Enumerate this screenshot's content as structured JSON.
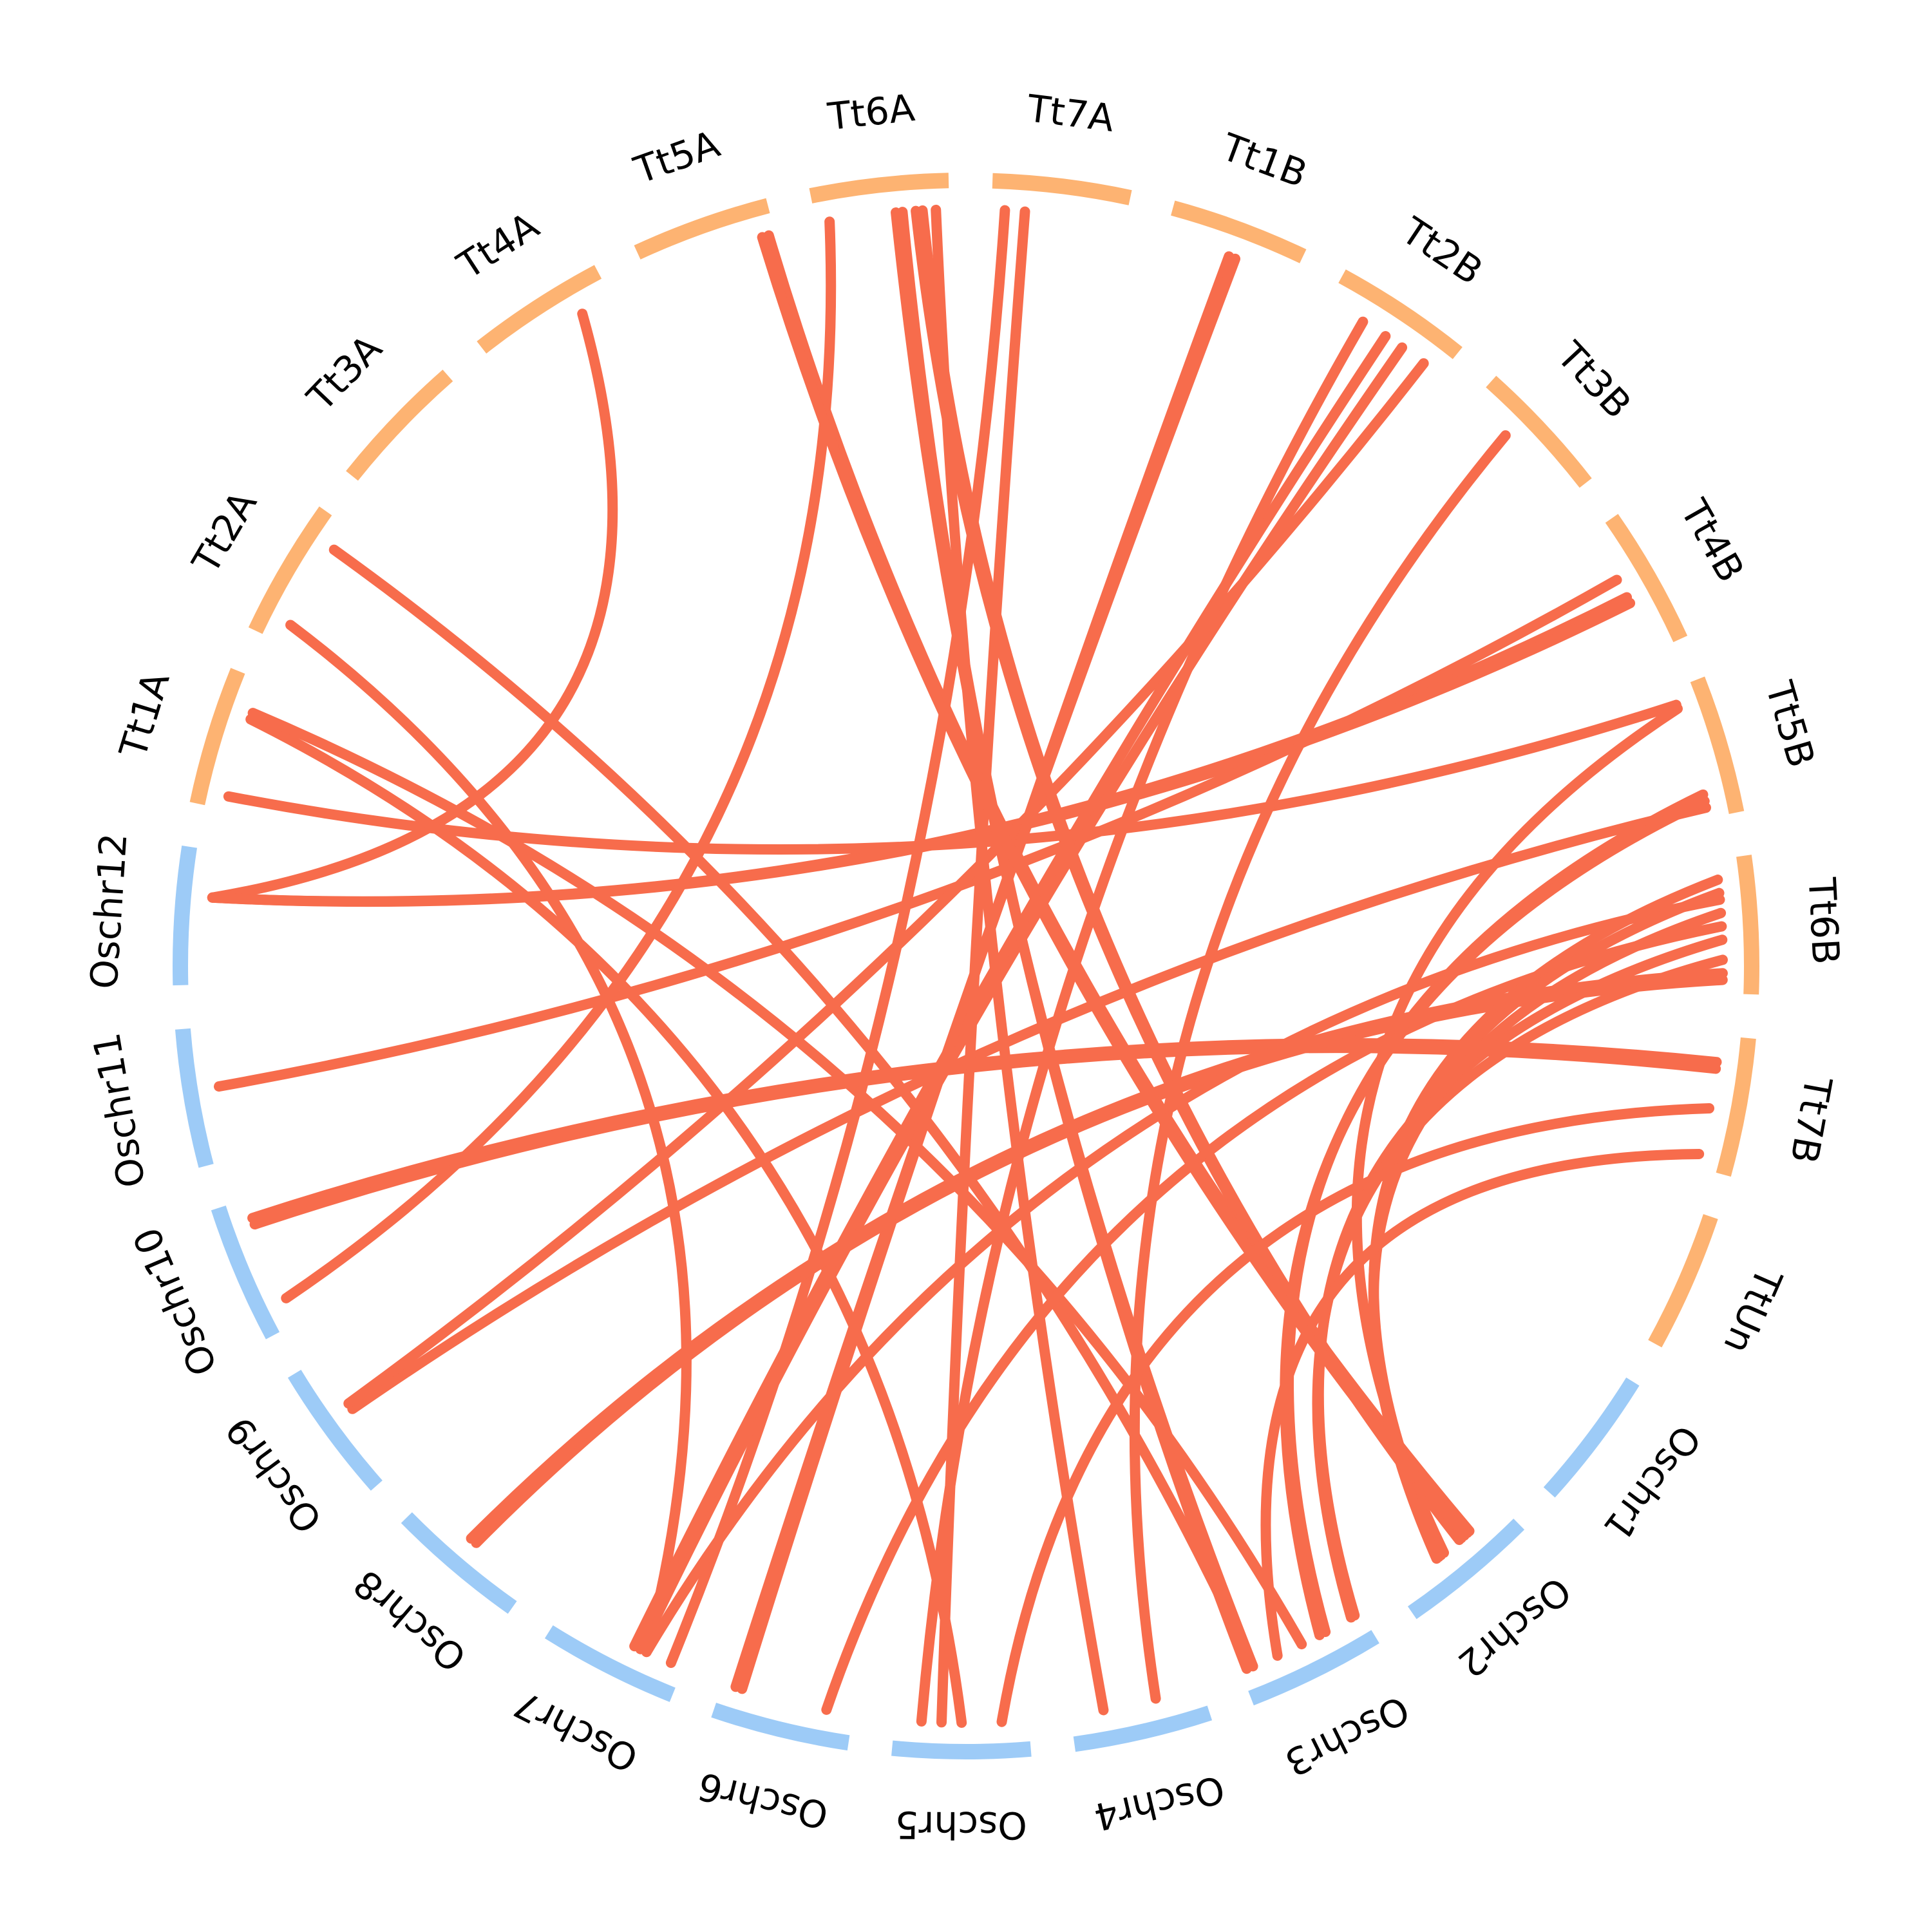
{
  "colors": {
    "wheat_segment": "#FDB372",
    "rice_segment": "#9DCBF7",
    "link": "#F76C4C",
    "label": "#000000",
    "background": "#FFFFFF"
  },
  "chromosomes": [
    {
      "id": "Tt1A",
      "label": "Tt1A",
      "group": "wheat"
    },
    {
      "id": "Tt2A",
      "label": "Tt2A",
      "group": "wheat"
    },
    {
      "id": "Tt3A",
      "label": "Tt3A",
      "group": "wheat"
    },
    {
      "id": "Tt4A",
      "label": "Tt4A",
      "group": "wheat"
    },
    {
      "id": "Tt5A",
      "label": "Tt5A",
      "group": "wheat"
    },
    {
      "id": "Tt6A",
      "label": "Tt6A",
      "group": "wheat"
    },
    {
      "id": "Tt7A",
      "label": "Tt7A",
      "group": "wheat"
    },
    {
      "id": "Tt1B",
      "label": "Tt1B",
      "group": "wheat"
    },
    {
      "id": "Tt2B",
      "label": "Tt2B",
      "group": "wheat"
    },
    {
      "id": "Tt3B",
      "label": "Tt3B",
      "group": "wheat"
    },
    {
      "id": "Tt4B",
      "label": "Tt4B",
      "group": "wheat"
    },
    {
      "id": "Tt5B",
      "label": "Tt5B",
      "group": "wheat"
    },
    {
      "id": "Tt6B",
      "label": "Tt6B",
      "group": "wheat"
    },
    {
      "id": "Tt7B",
      "label": "Tt7B",
      "group": "wheat"
    },
    {
      "id": "TtUn",
      "label": "TtUn",
      "group": "wheat"
    },
    {
      "id": "Oschr1",
      "label": "Oschr1",
      "group": "rice"
    },
    {
      "id": "Oschr2",
      "label": "Oschr2",
      "group": "rice"
    },
    {
      "id": "Oschr3",
      "label": "Oschr3",
      "group": "rice"
    },
    {
      "id": "Oschr4",
      "label": "Oschr4",
      "group": "rice"
    },
    {
      "id": "Oschr5",
      "label": "Oschr5",
      "group": "rice"
    },
    {
      "id": "Oschr6",
      "label": "Oschr6",
      "group": "rice"
    },
    {
      "id": "Oschr7",
      "label": "Oschr7",
      "group": "rice"
    },
    {
      "id": "Oschr8",
      "label": "Oschr8",
      "group": "rice"
    },
    {
      "id": "Oschr9",
      "label": "Oschr9",
      "group": "rice"
    },
    {
      "id": "Oschr10",
      "label": "Oschr10",
      "group": "rice"
    },
    {
      "id": "Oschr11",
      "label": "Oschr11",
      "group": "rice"
    },
    {
      "id": "Oschr12",
      "label": "Oschr12",
      "group": "rice"
    }
  ],
  "links": [
    {
      "from": "Oschr12",
      "from_pos": 0.65,
      "to": "Tt4A",
      "to_pos": 0.75
    },
    {
      "from": "Oschr12",
      "from_pos": 0.65,
      "to": "Tt4B",
      "to_pos": 0.55
    },
    {
      "from": "Oschr12",
      "from_pos": 0.65,
      "to": "Tt4B",
      "to_pos": 0.6
    },
    {
      "from": "Tt1A",
      "from_pos": 0.1,
      "to": "Tt5B",
      "to_pos": 0.12
    },
    {
      "from": "Tt1A",
      "from_pos": 0.7,
      "to": "Oschr5",
      "to_pos": 0.5
    },
    {
      "from": "Tt1A",
      "from_pos": 0.75,
      "to": "Oschr3",
      "to_pos": 0.5
    },
    {
      "from": "Tt2A",
      "from_pos": 0.15,
      "to": "Oschr7",
      "to_pos": 0.3
    },
    {
      "from": "Tt2A",
      "from_pos": 0.8,
      "to": "Oschr3",
      "to_pos": 0.9
    },
    {
      "from": "Oschr11",
      "from_pos": 0.55,
      "to": "Tt4B",
      "to_pos": 0.4
    },
    {
      "from": "Oschr10",
      "from_pos": 0.2,
      "to": "Tt6A",
      "to_pos": 0.1
    },
    {
      "from": "Oschr9",
      "from_pos": 0.55,
      "to": "Tt5B",
      "to_pos": 0.92
    },
    {
      "from": "Oschr9",
      "from_pos": 0.6,
      "to": "Tt2B",
      "to_pos": 0.85
    },
    {
      "from": "Oschr7",
      "from_pos": 0.1,
      "to": "Tt7A",
      "to_pos": 0.1
    },
    {
      "from": "Oschr7",
      "from_pos": 0.3,
      "to": "Tt6B",
      "to_pos": 0.3
    },
    {
      "from": "Oschr7",
      "from_pos": 0.35,
      "to": "Tt2B",
      "to_pos": 0.65
    },
    {
      "from": "Oschr7",
      "from_pos": 0.4,
      "to": "Tt2B",
      "to_pos": 0.5
    },
    {
      "from": "Oschr6",
      "from_pos": 0.85,
      "to": "Tt1B",
      "to_pos": 0.5
    },
    {
      "from": "Oschr6",
      "from_pos": 0.9,
      "to": "Tt1B",
      "to_pos": 0.55
    },
    {
      "from": "Oschr6",
      "from_pos": 0.2,
      "to": "Tt6B",
      "to_pos": 0.5
    },
    {
      "from": "Oschr5",
      "from_pos": 0.65,
      "to": "Tt7A",
      "to_pos": 0.25
    },
    {
      "from": "Oschr4",
      "from_pos": 0.35,
      "to": "Tt3B",
      "to_pos": 0.35
    },
    {
      "from": "Oschr3",
      "from_pos": 0.05,
      "to": "Tt6B",
      "to_pos": 0.6
    },
    {
      "from": "Oschr3",
      "from_pos": 0.08,
      "to": "Tt6B",
      "to_pos": 0.75
    },
    {
      "from": "Oschr3",
      "from_pos": 0.9,
      "to": "Tt6A",
      "to_pos": 0.6
    },
    {
      "from": "Oschr3",
      "from_pos": 0.95,
      "to": "Tt6A",
      "to_pos": 0.65
    },
    {
      "from": "Oschr2",
      "from_pos": 0.3,
      "to": "Tt5A",
      "to_pos": 0.95
    },
    {
      "from": "Oschr2",
      "from_pos": 0.32,
      "to": "Tt5A",
      "to_pos": 0.9
    },
    {
      "from": "Oschr2",
      "from_pos": 0.4,
      "to": "Tt6A",
      "to_pos": 0.75
    },
    {
      "from": "Oschr2",
      "from_pos": 0.38,
      "to": "Tt6A",
      "to_pos": 0.8
    },
    {
      "from": "Oschr2",
      "from_pos": 0.55,
      "to": "Tt5B",
      "to_pos": 0.15
    },
    {
      "from": "Oschr2",
      "from_pos": 0.58,
      "to": "Tt6B",
      "to_pos": 0.15
    },
    {
      "from": "Oschr2",
      "from_pos": 0.6,
      "to": "Tt6B",
      "to_pos": 0.25
    },
    {
      "from": "Oschr2",
      "from_pos": 0.62,
      "to": "Tt6B",
      "to_pos": 0.4
    },
    {
      "from": "Oschr3",
      "from_pos": 0.3,
      "to": "Tt5B",
      "to_pos": 0.82
    },
    {
      "from": "Oschr3",
      "from_pos": 0.35,
      "to": "Tt5B",
      "to_pos": 0.87
    },
    {
      "from": "Oschr10",
      "from_pos": 0.8,
      "to": "Tt7B",
      "to_pos": 0.25
    },
    {
      "from": "Oschr10",
      "from_pos": 0.85,
      "to": "Tt7B",
      "to_pos": 0.2
    },
    {
      "from": "Oschr5",
      "from_pos": 0.2,
      "to": "Tt7B",
      "to_pos": 0.55
    },
    {
      "from": "Oschr3",
      "from_pos": 0.7,
      "to": "Tt7B",
      "to_pos": 0.9
    },
    {
      "from": "Oschr8",
      "from_pos": 0.5,
      "to": "Tt6B",
      "to_pos": 0.9
    },
    {
      "from": "Oschr8",
      "from_pos": 0.55,
      "to": "Tt6B",
      "to_pos": 0.85
    },
    {
      "from": "Oschr5",
      "from_pos": 0.8,
      "to": "Tt2B",
      "to_pos": 0.3
    },
    {
      "from": "Tt5A",
      "from_pos": 0.9,
      "to": "Oschr2",
      "to_pos": 0.35
    },
    {
      "from": "Tt6A",
      "from_pos": 0.9,
      "to": "Oschr4",
      "to_pos": 0.75
    }
  ]
}
